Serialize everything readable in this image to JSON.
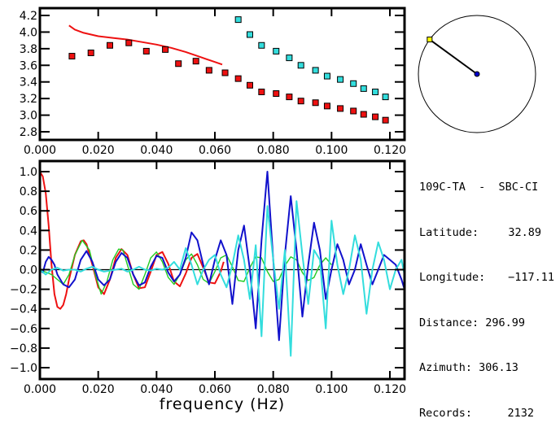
{
  "station": {
    "title": "109C-TA  -  SBC-CI",
    "fields": [
      {
        "label": "Latitude:",
        "value": "32.89"
      },
      {
        "label": "Longitude:",
        "value": "-117.11"
      },
      {
        "label": "Distance:",
        "value": "296.99"
      },
      {
        "label": "Azimuth:",
        "value": "306.13"
      },
      {
        "label": "Records:",
        "value": "2132"
      }
    ],
    "azimuth_deg": 306.13,
    "colors": {
      "station_marker": "#ffff00",
      "center_marker": "#0000cc"
    }
  },
  "chart_data": [
    {
      "type": "scatter",
      "title": "",
      "xlabel": "",
      "ylabel": "",
      "xlim": [
        0.0,
        0.125
      ],
      "ylim": [
        2.7,
        4.3
      ],
      "xticks": [
        "0.000",
        "0.020",
        "0.040",
        "0.060",
        "0.080",
        "0.100",
        "0.120"
      ],
      "yticks": [
        "2.8",
        "3.0",
        "3.2",
        "3.4",
        "3.6",
        "3.8",
        "4.0",
        "4.2"
      ],
      "series": [
        {
          "name": "red-curve",
          "kind": "line",
          "color": "#ee1111",
          "x": [
            0.01,
            0.012,
            0.015,
            0.02,
            0.025,
            0.03,
            0.035,
            0.04,
            0.045,
            0.05,
            0.055,
            0.06,
            0.0625
          ],
          "y": [
            4.08,
            4.03,
            3.99,
            3.95,
            3.93,
            3.91,
            3.88,
            3.85,
            3.81,
            3.76,
            3.7,
            3.64,
            3.61
          ]
        },
        {
          "name": "red-points",
          "kind": "markers",
          "color": "#ee1111",
          "x": [
            0.011,
            0.0175,
            0.024,
            0.0305,
            0.0365,
            0.043,
            0.0475,
            0.0535,
            0.058,
            0.0635,
            0.068,
            0.072,
            0.076,
            0.081,
            0.0855,
            0.0895,
            0.0945,
            0.0985,
            0.103,
            0.1075,
            0.111,
            0.115,
            0.1185
          ],
          "y": [
            3.71,
            3.75,
            3.84,
            3.87,
            3.77,
            3.79,
            3.62,
            3.65,
            3.54,
            3.51,
            3.44,
            3.36,
            3.28,
            3.26,
            3.22,
            3.17,
            3.15,
            3.11,
            3.08,
            3.05,
            3.01,
            2.98,
            2.94
          ]
        },
        {
          "name": "cyan-points",
          "kind": "markers",
          "color": "#33dddd",
          "x": [
            0.068,
            0.072,
            0.076,
            0.081,
            0.0855,
            0.0895,
            0.0945,
            0.0985,
            0.103,
            0.1075,
            0.111,
            0.115,
            0.1185
          ],
          "y": [
            4.15,
            3.97,
            3.84,
            3.77,
            3.69,
            3.6,
            3.54,
            3.47,
            3.43,
            3.38,
            3.32,
            3.28,
            3.22
          ]
        }
      ]
    },
    {
      "type": "line",
      "title": "",
      "xlabel": "frequency (Hz)",
      "ylabel": "",
      "xlim": [
        0.0,
        0.125
      ],
      "ylim": [
        -1.08,
        1.08
      ],
      "xticks": [
        "0.000",
        "0.020",
        "0.040",
        "0.060",
        "0.080",
        "0.100",
        "0.120"
      ],
      "yticks": [
        "-1.0",
        "-0.8",
        "-0.6",
        "-0.4",
        "-0.2",
        "0.0",
        "0.2",
        "0.4",
        "0.6",
        "0.8",
        "1.0"
      ],
      "zero_line": true,
      "series": [
        {
          "name": "red",
          "color": "#ee1111",
          "x": [
            0.0,
            0.001,
            0.002,
            0.003,
            0.004,
            0.005,
            0.006,
            0.007,
            0.008,
            0.009,
            0.01,
            0.012,
            0.014,
            0.015,
            0.016,
            0.018,
            0.02,
            0.022,
            0.024,
            0.026,
            0.028,
            0.03,
            0.032,
            0.034,
            0.036,
            0.038,
            0.04,
            0.042,
            0.044,
            0.046,
            0.048,
            0.05,
            0.052,
            0.054,
            0.056,
            0.058,
            0.06,
            0.062,
            0.063
          ],
          "y": [
            1.0,
            0.95,
            0.78,
            0.45,
            0.05,
            -0.25,
            -0.38,
            -0.4,
            -0.36,
            -0.25,
            -0.1,
            0.15,
            0.29,
            0.3,
            0.26,
            0.05,
            -0.18,
            -0.25,
            -0.1,
            0.12,
            0.21,
            0.15,
            -0.05,
            -0.19,
            -0.18,
            -0.02,
            0.15,
            0.18,
            0.06,
            -0.12,
            -0.17,
            -0.04,
            0.12,
            0.16,
            0.02,
            -0.13,
            -0.14,
            -0.02,
            0.08
          ]
        },
        {
          "name": "green",
          "color": "#22cc22",
          "x": [
            0.0,
            0.004,
            0.008,
            0.01,
            0.012,
            0.0145,
            0.017,
            0.019,
            0.021,
            0.023,
            0.025,
            0.027,
            0.0285,
            0.03,
            0.032,
            0.034,
            0.036,
            0.038,
            0.04,
            0.042,
            0.044,
            0.046,
            0.048,
            0.05,
            0.052,
            0.054,
            0.056,
            0.058,
            0.06,
            0.062,
            0.064,
            0.066,
            0.068,
            0.07,
            0.072,
            0.074,
            0.076,
            0.078,
            0.08,
            0.082,
            0.084,
            0.086,
            0.088,
            0.09,
            0.092,
            0.094,
            0.096,
            0.098,
            0.1
          ],
          "y": [
            0.0,
            -0.05,
            -0.15,
            -0.05,
            0.15,
            0.3,
            0.2,
            -0.05,
            -0.25,
            -0.12,
            0.1,
            0.21,
            0.2,
            0.05,
            -0.15,
            -0.2,
            -0.05,
            0.12,
            0.18,
            0.08,
            -0.08,
            -0.15,
            -0.05,
            0.1,
            0.16,
            0.05,
            -0.1,
            -0.14,
            -0.02,
            0.12,
            0.15,
            0.03,
            -0.11,
            -0.12,
            0.02,
            0.13,
            0.12,
            -0.02,
            -0.12,
            -0.1,
            0.04,
            0.13,
            0.1,
            -0.03,
            -0.11,
            -0.08,
            0.05,
            0.12,
            0.05
          ]
        },
        {
          "name": "blue",
          "color": "#1111cc",
          "x": [
            0.0,
            0.001,
            0.002,
            0.003,
            0.004,
            0.005,
            0.006,
            0.008,
            0.01,
            0.012,
            0.014,
            0.016,
            0.018,
            0.02,
            0.022,
            0.024,
            0.026,
            0.028,
            0.03,
            0.032,
            0.034,
            0.036,
            0.038,
            0.04,
            0.042,
            0.044,
            0.046,
            0.048,
            0.05,
            0.052,
            0.054,
            0.056,
            0.058,
            0.06,
            0.062,
            0.064,
            0.066,
            0.068,
            0.07,
            0.072,
            0.074,
            0.076,
            0.078,
            0.08,
            0.082,
            0.084,
            0.086,
            0.088,
            0.09,
            0.092,
            0.094,
            0.096,
            0.098,
            0.1,
            0.102,
            0.104,
            0.106,
            0.108,
            0.11,
            0.112,
            0.114,
            0.116,
            0.118,
            0.12,
            0.122,
            0.124,
            0.125
          ],
          "y": [
            0.0,
            -0.03,
            0.08,
            0.13,
            0.1,
            0.05,
            -0.05,
            -0.15,
            -0.18,
            -0.1,
            0.1,
            0.19,
            0.08,
            -0.1,
            -0.16,
            -0.1,
            0.08,
            0.17,
            0.12,
            -0.05,
            -0.16,
            -0.13,
            0.03,
            0.14,
            0.12,
            -0.03,
            -0.12,
            -0.05,
            0.12,
            0.38,
            0.3,
            0.05,
            -0.15,
            0.1,
            0.3,
            0.15,
            -0.35,
            0.2,
            0.45,
            0.0,
            -0.6,
            0.3,
            1.0,
            0.1,
            -0.72,
            0.15,
            0.75,
            0.2,
            -0.48,
            0.05,
            0.48,
            0.2,
            -0.3,
            0.0,
            0.26,
            0.1,
            -0.15,
            0.0,
            0.26,
            0.05,
            -0.15,
            0.0,
            0.15,
            0.1,
            0.05,
            -0.1,
            -0.2
          ]
        },
        {
          "name": "cyan",
          "color": "#33dddd",
          "x": [
            0.0,
            0.002,
            0.004,
            0.006,
            0.008,
            0.01,
            0.012,
            0.014,
            0.016,
            0.018,
            0.02,
            0.022,
            0.024,
            0.026,
            0.028,
            0.03,
            0.032,
            0.034,
            0.036,
            0.038,
            0.04,
            0.042,
            0.044,
            0.046,
            0.048,
            0.05,
            0.052,
            0.054,
            0.056,
            0.058,
            0.06,
            0.062,
            0.064,
            0.066,
            0.068,
            0.07,
            0.072,
            0.074,
            0.076,
            0.078,
            0.08,
            0.082,
            0.084,
            0.086,
            0.088,
            0.09,
            0.092,
            0.094,
            0.096,
            0.098,
            0.1,
            0.102,
            0.104,
            0.106,
            0.108,
            0.11,
            0.112,
            0.114,
            0.116,
            0.118,
            0.12,
            0.122,
            0.124,
            0.125
          ],
          "y": [
            0.0,
            -0.05,
            0.0,
            0.02,
            -0.01,
            0.0,
            0.0,
            -0.02,
            0.01,
            0.03,
            0.0,
            -0.02,
            -0.01,
            0.0,
            0.01,
            -0.02,
            0.0,
            0.03,
            0.0,
            -0.01,
            0.01,
            0.0,
            0.02,
            0.08,
            0.0,
            0.22,
            0.05,
            -0.15,
            0.0,
            0.1,
            0.15,
            -0.05,
            -0.18,
            0.05,
            0.35,
            0.1,
            -0.3,
            0.25,
            -0.68,
            0.65,
            0.1,
            -0.4,
            0.2,
            -0.88,
            0.7,
            0.15,
            -0.35,
            0.2,
            0.1,
            -0.6,
            0.5,
            0.05,
            -0.25,
            0.0,
            0.35,
            0.1,
            -0.45,
            0.0,
            0.28,
            0.1,
            -0.2,
            0.0,
            0.1,
            -0.05
          ]
        }
      ]
    }
  ]
}
